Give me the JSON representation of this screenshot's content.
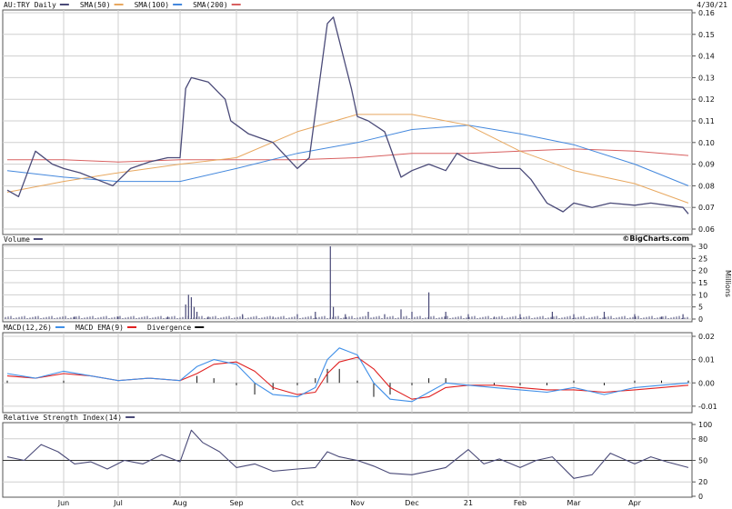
{
  "header": {
    "date": "4/30/21"
  },
  "brand": "©BigCharts.com",
  "colors": {
    "price": "#4a4a78",
    "sma50": "#e8a860",
    "sma100": "#4488dd",
    "sma200": "#d86060",
    "volume": "#4a4a78",
    "macd": "#3f8fe8",
    "macd_ema": "#e02020",
    "divergence": "#111111",
    "rsi": "#4a4a78",
    "grid": "#cfcfcf",
    "border": "#555555"
  },
  "months": [
    "Jun",
    "Jul",
    "Aug",
    "Sep",
    "Oct",
    "Nov",
    "Dec",
    "21",
    "Feb",
    "Mar",
    "Apr"
  ],
  "chart_data": [
    {
      "type": "line",
      "panel": "price",
      "legend": [
        {
          "label": "AU:TRY Daily",
          "color": "#4a4a78"
        },
        {
          "label": "SMA(50)",
          "color": "#e8a860"
        },
        {
          "label": "SMA(100)",
          "color": "#4488dd"
        },
        {
          "label": "SMA(200)",
          "color": "#d86060"
        }
      ],
      "yticks": [
        "0.16",
        "0.15",
        "0.14",
        "0.13",
        "0.12",
        "0.11",
        "0.10",
        "0.09",
        "0.08",
        "0.07",
        "0.06"
      ],
      "ylim": [
        0.06,
        0.16
      ],
      "x_months": [
        0,
        1,
        2,
        3,
        4,
        5,
        6,
        7,
        8,
        9,
        10,
        11,
        12
      ],
      "series": [
        {
          "key": "price",
          "x": [
            0,
            0.2,
            0.5,
            0.8,
            1.0,
            1.3,
            1.6,
            1.9,
            2.2,
            2.5,
            2.8,
            3.0,
            3.1,
            3.2,
            3.5,
            3.8,
            3.9,
            4.2,
            4.6,
            5.0,
            5.2,
            5.5,
            5.6,
            5.9,
            6.0,
            6.2,
            6.5,
            6.8,
            7.0,
            7.3,
            7.6,
            7.8,
            8.0,
            8.3,
            8.6,
            9.0,
            9.2,
            9.5,
            9.8,
            10.0,
            10.3,
            10.6,
            11.0,
            11.3,
            11.6,
            11.9,
            12.0
          ],
          "values": [
            0.078,
            0.075,
            0.096,
            0.09,
            0.088,
            0.086,
            0.083,
            0.08,
            0.088,
            0.091,
            0.093,
            0.093,
            0.125,
            0.13,
            0.128,
            0.12,
            0.11,
            0.104,
            0.1,
            0.088,
            0.093,
            0.155,
            0.158,
            0.125,
            0.112,
            0.11,
            0.105,
            0.084,
            0.087,
            0.09,
            0.087,
            0.095,
            0.092,
            0.09,
            0.088,
            0.088,
            0.083,
            0.072,
            0.068,
            0.072,
            0.07,
            0.072,
            0.071,
            0.072,
            0.071,
            0.07,
            0.067
          ]
        },
        {
          "key": "sma50",
          "x": [
            0,
            1,
            2,
            3,
            4,
            5,
            6,
            7,
            8,
            9,
            10,
            11,
            12
          ],
          "values": [
            0.077,
            0.082,
            0.086,
            0.09,
            0.093,
            0.105,
            0.113,
            0.113,
            0.108,
            0.096,
            0.087,
            0.081,
            0.072
          ]
        },
        {
          "key": "sma100",
          "x": [
            0,
            1,
            2,
            3,
            4,
            5,
            6,
            7,
            8,
            9,
            10,
            11,
            12
          ],
          "values": [
            0.087,
            0.084,
            0.082,
            0.082,
            0.088,
            0.095,
            0.1,
            0.106,
            0.108,
            0.104,
            0.099,
            0.09,
            0.08
          ]
        },
        {
          "key": "sma200",
          "x": [
            0,
            1,
            2,
            3,
            4,
            5,
            6,
            7,
            8,
            9,
            10,
            11,
            12
          ],
          "values": [
            0.092,
            0.092,
            0.091,
            0.092,
            0.092,
            0.092,
            0.093,
            0.095,
            0.095,
            0.096,
            0.097,
            0.096,
            0.094
          ]
        }
      ]
    },
    {
      "type": "bar",
      "panel": "volume",
      "legend": [
        {
          "label": "Volume",
          "color": "#4a4a78"
        }
      ],
      "yticks": [
        "30",
        "25",
        "20",
        "15",
        "10",
        "5",
        "0"
      ],
      "ylabel": "Millions",
      "ylim": [
        0,
        30
      ],
      "x_months": [
        0.5,
        1.2,
        2.0,
        2.8,
        3.1,
        3.15,
        3.2,
        3.25,
        3.3,
        3.5,
        4.1,
        4.6,
        5.0,
        5.3,
        5.55,
        5.6,
        5.8,
        6.2,
        6.5,
        6.8,
        7.0,
        7.3,
        7.6,
        8.0,
        8.5,
        9.0,
        9.6,
        10.0,
        10.5,
        11.0,
        11.5,
        11.9
      ],
      "values": [
        1,
        1,
        1,
        1,
        6,
        10,
        9,
        5,
        3,
        1,
        2,
        1,
        2,
        3,
        30,
        5,
        2,
        3,
        2,
        4,
        3,
        11,
        3,
        2,
        1,
        2,
        3,
        2,
        3,
        2,
        1,
        2
      ]
    },
    {
      "type": "line",
      "panel": "macd",
      "legend": [
        {
          "label": "MACD(12,26)",
          "color": "#3f8fe8"
        },
        {
          "label": "MACD EMA(9)",
          "color": "#e02020"
        },
        {
          "label": "Divergence",
          "color": "#111111"
        }
      ],
      "yticks": [
        "0.02",
        "0.01",
        "0.00",
        "-0.01"
      ],
      "ylim": [
        -0.012,
        0.02
      ],
      "x_months": [
        0,
        0.5,
        1.0,
        1.5,
        2.0,
        2.5,
        3.0,
        3.3,
        3.6,
        4.0,
        4.3,
        4.6,
        5.0,
        5.3,
        5.5,
        5.7,
        6.0,
        6.3,
        6.6,
        7.0,
        7.3,
        7.6,
        8.0,
        8.5,
        9.0,
        9.5,
        10.0,
        10.5,
        11.0,
        11.5,
        12.0
      ],
      "series": [
        {
          "key": "macd",
          "values": [
            0.004,
            0.002,
            0.005,
            0.003,
            0.001,
            0.002,
            0.001,
            0.007,
            0.01,
            0.008,
            0.0,
            -0.005,
            -0.006,
            -0.002,
            0.01,
            0.015,
            0.012,
            0.0,
            -0.007,
            -0.008,
            -0.004,
            0.0,
            -0.001,
            -0.002,
            -0.003,
            -0.004,
            -0.002,
            -0.005,
            -0.002,
            -0.001,
            0.0
          ]
        },
        {
          "key": "macd_ema",
          "values": [
            0.003,
            0.002,
            0.004,
            0.003,
            0.001,
            0.002,
            0.001,
            0.004,
            0.008,
            0.009,
            0.005,
            -0.002,
            -0.005,
            -0.004,
            0.004,
            0.009,
            0.011,
            0.006,
            -0.002,
            -0.007,
            -0.006,
            -0.002,
            -0.001,
            -0.001,
            -0.002,
            -0.003,
            -0.003,
            -0.004,
            -0.003,
            -0.002,
            -0.001
          ]
        },
        {
          "key": "divergence",
          "values": [
            0.001,
            0.0,
            0.001,
            0.0,
            0.0,
            0.0,
            0.0,
            0.003,
            0.002,
            -0.001,
            -0.005,
            -0.003,
            -0.001,
            0.002,
            0.006,
            0.006,
            0.001,
            -0.006,
            -0.005,
            -0.001,
            0.002,
            0.002,
            0.0,
            -0.001,
            -0.001,
            -0.001,
            0.001,
            -0.001,
            0.001,
            0.001,
            0.001
          ]
        }
      ]
    },
    {
      "type": "line",
      "panel": "rsi",
      "legend": [
        {
          "label": "Relative Strength Index(14)",
          "color": "#4a4a78"
        }
      ],
      "yticks": [
        "100",
        "80",
        "50",
        "20",
        "0"
      ],
      "ylim": [
        0,
        100
      ],
      "reference_line": 50,
      "x_months": [
        0,
        0.3,
        0.6,
        0.9,
        1.2,
        1.5,
        1.8,
        2.1,
        2.4,
        2.7,
        3.0,
        3.2,
        3.4,
        3.7,
        4.0,
        4.3,
        4.6,
        5.0,
        5.3,
        5.5,
        5.7,
        6.0,
        6.3,
        6.6,
        7.0,
        7.3,
        7.6,
        8.0,
        8.3,
        8.6,
        9.0,
        9.3,
        9.6,
        10.0,
        10.3,
        10.6,
        11.0,
        11.3,
        11.6,
        12.0
      ],
      "values": [
        55,
        50,
        72,
        62,
        45,
        48,
        38,
        50,
        45,
        58,
        48,
        92,
        75,
        62,
        40,
        45,
        35,
        38,
        40,
        62,
        55,
        50,
        42,
        32,
        30,
        35,
        40,
        65,
        45,
        52,
        40,
        50,
        55,
        25,
        30,
        60,
        45,
        55,
        48,
        40
      ]
    }
  ]
}
